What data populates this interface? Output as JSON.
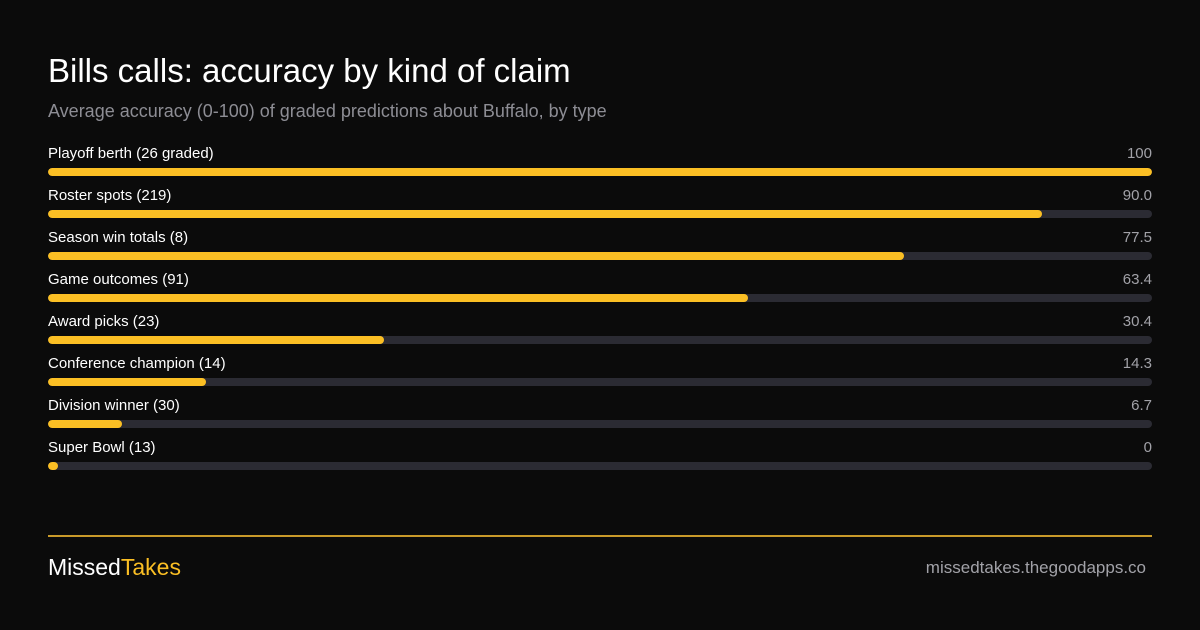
{
  "header": {
    "title": "Bills calls: accuracy by kind of claim",
    "subtitle": "Average accuracy (0-100) of graded predictions about Buffalo, by type"
  },
  "chart_data": {
    "type": "bar",
    "orientation": "horizontal",
    "title": "Bills calls: accuracy by kind of claim",
    "subtitle": "Average accuracy (0-100) of graded predictions about Buffalo, by type",
    "xlim": [
      0,
      100
    ],
    "grid": false,
    "categories": [
      "Playoff berth (26 graded)",
      "Roster spots (219)",
      "Season win totals (8)",
      "Game outcomes (91)",
      "Award picks (23)",
      "Conference champion (14)",
      "Division winner (30)",
      "Super Bowl (13)"
    ],
    "values": [
      100,
      90.0,
      77.5,
      63.4,
      30.4,
      14.3,
      6.7,
      0
    ],
    "value_labels": [
      "100",
      "90.0",
      "77.5",
      "63.4",
      "30.4",
      "14.3",
      "6.7",
      "0"
    ]
  },
  "footer": {
    "brand_part1": "Missed",
    "brand_part2": "Takes",
    "site": "missedtakes.thegoodapps.co"
  },
  "colors": {
    "background": "#0b0b0b",
    "accent": "#fbbf24",
    "track": "#2b2b33",
    "muted_text": "#8d8d94"
  }
}
